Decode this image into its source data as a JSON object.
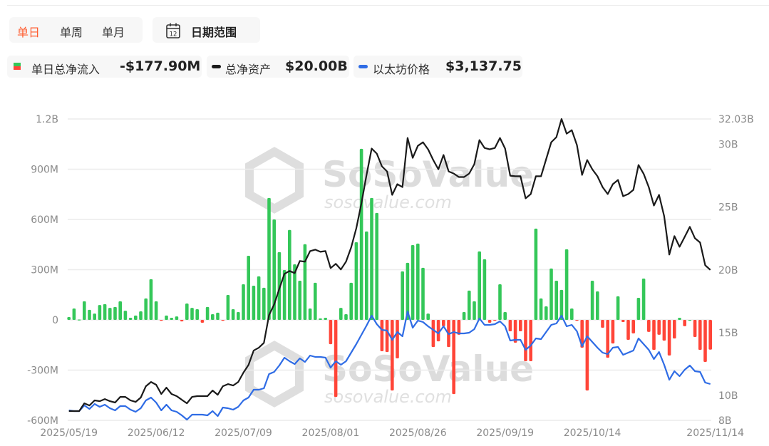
{
  "tabs": [
    {
      "label": "单日",
      "active": true
    },
    {
      "label": "单周",
      "active": false
    },
    {
      "label": "单月",
      "active": false
    }
  ],
  "date_range": {
    "label": "日期范围",
    "icon": "calendar-icon",
    "icon_text": "12"
  },
  "legend": [
    {
      "label": "单日总净流入",
      "value": "-$177.90M",
      "swatch": "green-red-square"
    },
    {
      "label": "总净资产",
      "value": "$20.00B",
      "swatch": "black-line"
    },
    {
      "label": "以太坊价格",
      "value": "$3,137.75",
      "swatch": "blue-line"
    }
  ],
  "watermark": {
    "brand": "SoSoValue",
    "site": "sosovalue.com"
  },
  "colors": {
    "active_tab": "#ff5a2c",
    "inflow_positive": "#34c759",
    "inflow_negative": "#ff4538",
    "net_assets": "#1a1a1a",
    "eth_price": "#2f6ce5",
    "grid": "#ececec"
  },
  "chart_data": {
    "type": "bar+line",
    "title": "",
    "grid": true,
    "left_axis": {
      "ticks": [
        "1.2B",
        "900M",
        "600M",
        "300M",
        "0",
        "-300M",
        "-600M"
      ],
      "ylim": [
        -600,
        1200
      ],
      "unit": "M USD"
    },
    "right_axis": {
      "ticks": [
        "32.03B",
        "30B",
        "25B",
        "20B",
        "15B",
        "10B",
        "8B"
      ],
      "tick_values": [
        32.03,
        30,
        25,
        20,
        15,
        10,
        8
      ],
      "ylim": [
        8,
        32.03
      ],
      "unit": "B USD"
    },
    "x_ticks": [
      "2025/05/19",
      "2025/06/12",
      "2025/07/09",
      "2025/08/01",
      "2025/08/26",
      "2025/09/19",
      "2025/10/14",
      "2025/11/14"
    ],
    "x": [
      "2025-05-19",
      "2025-05-20",
      "2025-05-21",
      "2025-05-22",
      "2025-05-23",
      "2025-05-27",
      "2025-05-28",
      "2025-05-29",
      "2025-05-30",
      "2025-06-02",
      "2025-06-03",
      "2025-06-04",
      "2025-06-05",
      "2025-06-06",
      "2025-06-09",
      "2025-06-10",
      "2025-06-11",
      "2025-06-12",
      "2025-06-13",
      "2025-06-16",
      "2025-06-17",
      "2025-06-18",
      "2025-06-20",
      "2025-06-23",
      "2025-06-24",
      "2025-06-25",
      "2025-06-26",
      "2025-06-27",
      "2025-06-30",
      "2025-07-01",
      "2025-07-02",
      "2025-07-03",
      "2025-07-07",
      "2025-07-08",
      "2025-07-09",
      "2025-07-10",
      "2025-07-11",
      "2025-07-14",
      "2025-07-15",
      "2025-07-16",
      "2025-07-17",
      "2025-07-18",
      "2025-07-21",
      "2025-07-22",
      "2025-07-23",
      "2025-07-24",
      "2025-07-25",
      "2025-07-28",
      "2025-07-29",
      "2025-07-30",
      "2025-07-31",
      "2025-08-01",
      "2025-08-04",
      "2025-08-05",
      "2025-08-06",
      "2025-08-07",
      "2025-08-08",
      "2025-08-11",
      "2025-08-12",
      "2025-08-13",
      "2025-08-14",
      "2025-08-15",
      "2025-08-18",
      "2025-08-19",
      "2025-08-20",
      "2025-08-21",
      "2025-08-22",
      "2025-08-25",
      "2025-08-26",
      "2025-08-27",
      "2025-08-28",
      "2025-08-29",
      "2025-09-02",
      "2025-09-03",
      "2025-09-04",
      "2025-09-05",
      "2025-09-08",
      "2025-09-09",
      "2025-09-10",
      "2025-09-11",
      "2025-09-12",
      "2025-09-15",
      "2025-09-16",
      "2025-09-17",
      "2025-09-18",
      "2025-09-19",
      "2025-09-22",
      "2025-09-23",
      "2025-09-24",
      "2025-09-25",
      "2025-09-26",
      "2025-09-29",
      "2025-09-30",
      "2025-10-01",
      "2025-10-02",
      "2025-10-03",
      "2025-10-06",
      "2025-10-07",
      "2025-10-08",
      "2025-10-09",
      "2025-10-10",
      "2025-10-13",
      "2025-10-14",
      "2025-10-15",
      "2025-10-16",
      "2025-10-17",
      "2025-10-20",
      "2025-10-21",
      "2025-10-22",
      "2025-10-23",
      "2025-10-24",
      "2025-10-27",
      "2025-10-28",
      "2025-10-29",
      "2025-10-30",
      "2025-10-31",
      "2025-11-03",
      "2025-11-04",
      "2025-11-05",
      "2025-11-06",
      "2025-11-07",
      "2025-11-10",
      "2025-11-11",
      "2025-11-12",
      "2025-11-13",
      "2025-11-14"
    ],
    "series": [
      {
        "name": "单日总净流入",
        "type": "bar",
        "axis": "left",
        "unit": "M USD",
        "values": [
          17,
          68,
          2,
          111,
          60,
          38,
          89,
          94,
          72,
          77,
          111,
          55,
          13,
          26,
          51,
          128,
          243,
          111,
          -3,
          26,
          13,
          21,
          -9,
          98,
          72,
          64,
          -17,
          77,
          34,
          43,
          -2,
          149,
          64,
          47,
          213,
          383,
          204,
          260,
          192,
          728,
          600,
          405,
          298,
          537,
          332,
          234,
          452,
          68,
          222,
          9,
          13,
          -145,
          -460,
          72,
          34,
          222,
          464,
          1022,
          528,
          728,
          639,
          -187,
          -192,
          -422,
          -230,
          290,
          341,
          447,
          456,
          311,
          38,
          -162,
          -128,
          -38,
          -162,
          -443,
          -89,
          47,
          175,
          111,
          409,
          362,
          -17,
          -4,
          213,
          47,
          -68,
          -136,
          -68,
          -247,
          -247,
          545,
          128,
          81,
          307,
          234,
          179,
          422,
          68,
          -4,
          -166,
          -422,
          234,
          170,
          -47,
          -226,
          -141,
          141,
          -13,
          -119,
          -81,
          132,
          247,
          -72,
          -179,
          -89,
          -124,
          -213,
          -111,
          13,
          -38,
          0,
          -102,
          -179,
          -251,
          -177.9
        ]
      },
      {
        "name": "总净资产",
        "type": "line",
        "axis": "right",
        "unit": "B USD",
        "values": [
          8.74,
          8.74,
          8.74,
          9.36,
          9.19,
          9.59,
          9.53,
          9.7,
          9.53,
          9.42,
          9.87,
          9.87,
          9.59,
          9.47,
          9.82,
          10.72,
          11.06,
          10.84,
          10.1,
          10.61,
          10.1,
          9.93,
          9.64,
          9.36,
          9.87,
          9.93,
          9.93,
          9.93,
          10.38,
          10.04,
          10.72,
          10.89,
          10.78,
          11.06,
          11.8,
          12.42,
          13.56,
          13.79,
          14.18,
          16.39,
          17.25,
          18.49,
          19.68,
          19.91,
          19.74,
          20.71,
          20.65,
          21.5,
          21.61,
          21.44,
          21.5,
          20.14,
          20.48,
          20.03,
          20.65,
          21.78,
          23.31,
          25.3,
          27.57,
          29.67,
          29.27,
          28.25,
          27.85,
          25.98,
          26.83,
          26.6,
          30.52,
          28.93,
          29.89,
          30.18,
          29.61,
          28.76,
          28.02,
          29.16,
          27.85,
          27.68,
          27.4,
          27.4,
          27.68,
          28.42,
          30.35,
          29.72,
          29.61,
          29.72,
          30.52,
          29.67,
          27.51,
          27.46,
          27.46,
          25.7,
          26.04,
          27.46,
          27.46,
          28.82,
          30.18,
          30.58,
          32.03,
          30.86,
          31.14,
          29.95,
          27.57,
          28.76,
          28.02,
          27.46,
          26.6,
          26.04,
          26.83,
          27.17,
          25.87,
          26.04,
          26.38,
          28.36,
          27.66,
          26.6,
          25.13,
          25.98,
          24.28,
          21.22,
          22.69,
          21.84,
          22.63,
          23.43,
          22.52,
          22.18,
          20.37,
          20.0
        ]
      },
      {
        "name": "以太坊价格",
        "type": "line",
        "axis": "none",
        "unit": "USD",
        "values": [
          2524,
          2507,
          2507,
          2640,
          2557,
          2673,
          2607,
          2657,
          2574,
          2524,
          2623,
          2623,
          2541,
          2491,
          2574,
          2756,
          2823,
          2706,
          2524,
          2657,
          2524,
          2491,
          2408,
          2308,
          2424,
          2424,
          2424,
          2408,
          2507,
          2391,
          2590,
          2574,
          2541,
          2607,
          2756,
          2823,
          3005,
          3005,
          3038,
          3370,
          3420,
          3569,
          3752,
          3669,
          3602,
          3735,
          3652,
          3801,
          3768,
          3768,
          3752,
          3519,
          3669,
          3586,
          3669,
          3868,
          4067,
          4282,
          4498,
          4730,
          4531,
          4399,
          4382,
          4166,
          4349,
          4249,
          4830,
          4448,
          4614,
          4581,
          4481,
          4399,
          4316,
          4481,
          4299,
          4349,
          4316,
          4316,
          4332,
          4415,
          4664,
          4515,
          4515,
          4531,
          4598,
          4481,
          4150,
          4166,
          4166,
          3934,
          4034,
          4200,
          4183,
          4349,
          4515,
          4548,
          4730,
          4481,
          4515,
          4365,
          4017,
          4249,
          4117,
          3984,
          3868,
          3834,
          3984,
          4000,
          3818,
          3868,
          3917,
          4200,
          4067,
          3934,
          3718,
          3884,
          3586,
          3237,
          3436,
          3320,
          3470,
          3569,
          3436,
          3420,
          3171,
          3137.75
        ]
      }
    ]
  }
}
